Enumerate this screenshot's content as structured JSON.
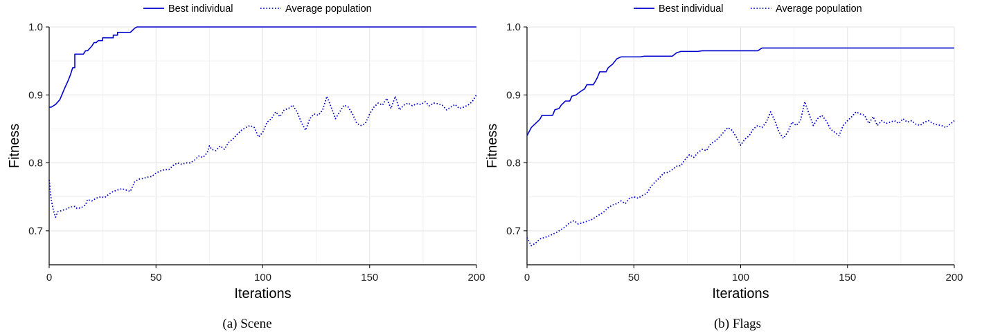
{
  "chart_data": [
    {
      "type": "line",
      "caption": "(a) Scene",
      "xlabel": "Iterations",
      "ylabel": "Fitness",
      "xlim": [
        0,
        200
      ],
      "ylim": [
        0.65,
        1.0
      ],
      "xticks": [
        0,
        50,
        100,
        150,
        200
      ],
      "yticks": [
        0.7,
        0.8,
        0.9,
        1.0
      ],
      "xtick_labels": [
        "0",
        "50",
        "100",
        "150",
        "200"
      ],
      "ytick_labels": [
        "0.7",
        "0.8",
        "0.9",
        "1.0"
      ],
      "grid": true,
      "legend_position": "top",
      "series": [
        {
          "name": "Best individual",
          "color": "#0000cc",
          "style": "solid",
          "points": [
            [
              0,
              0.882
            ],
            [
              1,
              0.882
            ],
            [
              3,
              0.886
            ],
            [
              5,
              0.893
            ],
            [
              7,
              0.908
            ],
            [
              9,
              0.922
            ],
            [
              10,
              0.93
            ],
            [
              11,
              0.94
            ],
            [
              12,
              0.94
            ],
            [
              12,
              0.96
            ],
            [
              16,
              0.96
            ],
            [
              17,
              0.965
            ],
            [
              18,
              0.965
            ],
            [
              20,
              0.972
            ],
            [
              21,
              0.977
            ],
            [
              22,
              0.977
            ],
            [
              23,
              0.98
            ],
            [
              25,
              0.98
            ],
            [
              25,
              0.984
            ],
            [
              30,
              0.984
            ],
            [
              30,
              0.988
            ],
            [
              32,
              0.988
            ],
            [
              32,
              0.992
            ],
            [
              38,
              0.992
            ],
            [
              40,
              0.998
            ],
            [
              41,
              1.0
            ],
            [
              200,
              1.0
            ]
          ]
        },
        {
          "name": "Average population",
          "color": "#0000cc",
          "style": "dotted",
          "points": [
            [
              0,
              0.775
            ],
            [
              1,
              0.745
            ],
            [
              2,
              0.73
            ],
            [
              3,
              0.72
            ],
            [
              4,
              0.728
            ],
            [
              6,
              0.73
            ],
            [
              8,
              0.732
            ],
            [
              10,
              0.735
            ],
            [
              12,
              0.736
            ],
            [
              13,
              0.733
            ],
            [
              15,
              0.734
            ],
            [
              17,
              0.738
            ],
            [
              18,
              0.746
            ],
            [
              20,
              0.744
            ],
            [
              22,
              0.748
            ],
            [
              24,
              0.75
            ],
            [
              26,
              0.749
            ],
            [
              28,
              0.754
            ],
            [
              30,
              0.758
            ],
            [
              32,
              0.76
            ],
            [
              34,
              0.762
            ],
            [
              36,
              0.76
            ],
            [
              38,
              0.758
            ],
            [
              40,
              0.772
            ],
            [
              42,
              0.776
            ],
            [
              44,
              0.777
            ],
            [
              46,
              0.779
            ],
            [
              48,
              0.78
            ],
            [
              50,
              0.785
            ],
            [
              52,
              0.788
            ],
            [
              54,
              0.79
            ],
            [
              56,
              0.79
            ],
            [
              58,
              0.796
            ],
            [
              60,
              0.8
            ],
            [
              62,
              0.798
            ],
            [
              64,
              0.8
            ],
            [
              66,
              0.8
            ],
            [
              68,
              0.804
            ],
            [
              70,
              0.81
            ],
            [
              72,
              0.808
            ],
            [
              74,
              0.815
            ],
            [
              75,
              0.825
            ],
            [
              76,
              0.82
            ],
            [
              78,
              0.818
            ],
            [
              80,
              0.825
            ],
            [
              82,
              0.82
            ],
            [
              84,
              0.83
            ],
            [
              86,
              0.835
            ],
            [
              88,
              0.842
            ],
            [
              90,
              0.848
            ],
            [
              92,
              0.852
            ],
            [
              94,
              0.855
            ],
            [
              96,
              0.852
            ],
            [
              98,
              0.838
            ],
            [
              100,
              0.845
            ],
            [
              102,
              0.86
            ],
            [
              104,
              0.865
            ],
            [
              106,
              0.875
            ],
            [
              108,
              0.868
            ],
            [
              110,
              0.878
            ],
            [
              112,
              0.88
            ],
            [
              114,
              0.885
            ],
            [
              116,
              0.875
            ],
            [
              118,
              0.86
            ],
            [
              120,
              0.848
            ],
            [
              122,
              0.865
            ],
            [
              124,
              0.872
            ],
            [
              126,
              0.87
            ],
            [
              128,
              0.878
            ],
            [
              130,
              0.898
            ],
            [
              132,
              0.882
            ],
            [
              134,
              0.865
            ],
            [
              136,
              0.875
            ],
            [
              138,
              0.885
            ],
            [
              140,
              0.882
            ],
            [
              142,
              0.872
            ],
            [
              144,
              0.858
            ],
            [
              146,
              0.855
            ],
            [
              148,
              0.858
            ],
            [
              150,
              0.872
            ],
            [
              152,
              0.882
            ],
            [
              154,
              0.888
            ],
            [
              156,
              0.885
            ],
            [
              158,
              0.895
            ],
            [
              160,
              0.88
            ],
            [
              162,
              0.898
            ],
            [
              164,
              0.878
            ],
            [
              166,
              0.885
            ],
            [
              168,
              0.888
            ],
            [
              170,
              0.884
            ],
            [
              172,
              0.887
            ],
            [
              174,
              0.886
            ],
            [
              176,
              0.89
            ],
            [
              178,
              0.884
            ],
            [
              180,
              0.888
            ],
            [
              182,
              0.887
            ],
            [
              184,
              0.885
            ],
            [
              186,
              0.878
            ],
            [
              188,
              0.882
            ],
            [
              190,
              0.886
            ],
            [
              192,
              0.88
            ],
            [
              194,
              0.882
            ],
            [
              196,
              0.885
            ],
            [
              198,
              0.89
            ],
            [
              200,
              0.9
            ]
          ]
        }
      ]
    },
    {
      "type": "line",
      "caption": "(b) Flags",
      "xlabel": "Iterations",
      "ylabel": "Fitness",
      "xlim": [
        0,
        200
      ],
      "ylim": [
        0.65,
        1.0
      ],
      "xticks": [
        0,
        50,
        100,
        150,
        200
      ],
      "yticks": [
        0.7,
        0.8,
        0.9,
        1.0
      ],
      "xtick_labels": [
        "0",
        "50",
        "100",
        "150",
        "200"
      ],
      "ytick_labels": [
        "0.7",
        "0.8",
        "0.9",
        "1.0"
      ],
      "grid": true,
      "legend_position": "top",
      "series": [
        {
          "name": "Best individual",
          "color": "#0000cc",
          "style": "solid",
          "points": [
            [
              0,
              0.84
            ],
            [
              2,
              0.852
            ],
            [
              4,
              0.858
            ],
            [
              6,
              0.864
            ],
            [
              7,
              0.87
            ],
            [
              12,
              0.87
            ],
            [
              13,
              0.878
            ],
            [
              15,
              0.88
            ],
            [
              16,
              0.885
            ],
            [
              18,
              0.891
            ],
            [
              20,
              0.891
            ],
            [
              21,
              0.898
            ],
            [
              23,
              0.9
            ],
            [
              25,
              0.905
            ],
            [
              27,
              0.909
            ],
            [
              28,
              0.915
            ],
            [
              31,
              0.915
            ],
            [
              32,
              0.92
            ],
            [
              33,
              0.926
            ],
            [
              34,
              0.934
            ],
            [
              37,
              0.934
            ],
            [
              38,
              0.94
            ],
            [
              40,
              0.945
            ],
            [
              42,
              0.953
            ],
            [
              44,
              0.956
            ],
            [
              53,
              0.956
            ],
            [
              55,
              0.957
            ],
            [
              68,
              0.957
            ],
            [
              70,
              0.962
            ],
            [
              72,
              0.964
            ],
            [
              80,
              0.964
            ],
            [
              82,
              0.965
            ],
            [
              108,
              0.965
            ],
            [
              110,
              0.969
            ],
            [
              200,
              0.969
            ]
          ]
        },
        {
          "name": "Average population",
          "color": "#0000cc",
          "style": "dotted",
          "points": [
            [
              0,
              0.69
            ],
            [
              2,
              0.678
            ],
            [
              4,
              0.682
            ],
            [
              6,
              0.688
            ],
            [
              8,
              0.69
            ],
            [
              10,
              0.692
            ],
            [
              12,
              0.695
            ],
            [
              14,
              0.698
            ],
            [
              16,
              0.702
            ],
            [
              18,
              0.706
            ],
            [
              20,
              0.712
            ],
            [
              22,
              0.715
            ],
            [
              24,
              0.71
            ],
            [
              26,
              0.712
            ],
            [
              28,
              0.714
            ],
            [
              30,
              0.716
            ],
            [
              32,
              0.72
            ],
            [
              34,
              0.724
            ],
            [
              36,
              0.728
            ],
            [
              38,
              0.734
            ],
            [
              40,
              0.738
            ],
            [
              42,
              0.74
            ],
            [
              44,
              0.744
            ],
            [
              46,
              0.74
            ],
            [
              48,
              0.748
            ],
            [
              50,
              0.75
            ],
            [
              52,
              0.748
            ],
            [
              54,
              0.752
            ],
            [
              56,
              0.755
            ],
            [
              58,
              0.765
            ],
            [
              60,
              0.772
            ],
            [
              62,
              0.778
            ],
            [
              64,
              0.785
            ],
            [
              66,
              0.786
            ],
            [
              68,
              0.79
            ],
            [
              70,
              0.795
            ],
            [
              72,
              0.796
            ],
            [
              74,
              0.805
            ],
            [
              76,
              0.812
            ],
            [
              78,
              0.808
            ],
            [
              80,
              0.815
            ],
            [
              82,
              0.82
            ],
            [
              84,
              0.818
            ],
            [
              86,
              0.828
            ],
            [
              88,
              0.832
            ],
            [
              90,
              0.838
            ],
            [
              92,
              0.845
            ],
            [
              94,
              0.852
            ],
            [
              96,
              0.848
            ],
            [
              98,
              0.838
            ],
            [
              100,
              0.826
            ],
            [
              102,
              0.835
            ],
            [
              104,
              0.84
            ],
            [
              106,
              0.85
            ],
            [
              108,
              0.855
            ],
            [
              110,
              0.852
            ],
            [
              112,
              0.86
            ],
            [
              114,
              0.875
            ],
            [
              116,
              0.862
            ],
            [
              118,
              0.845
            ],
            [
              120,
              0.836
            ],
            [
              122,
              0.845
            ],
            [
              124,
              0.86
            ],
            [
              126,
              0.855
            ],
            [
              128,
              0.862
            ],
            [
              130,
              0.89
            ],
            [
              132,
              0.872
            ],
            [
              134,
              0.855
            ],
            [
              136,
              0.865
            ],
            [
              138,
              0.87
            ],
            [
              140,
              0.862
            ],
            [
              142,
              0.85
            ],
            [
              144,
              0.845
            ],
            [
              146,
              0.84
            ],
            [
              148,
              0.855
            ],
            [
              150,
              0.862
            ],
            [
              152,
              0.868
            ],
            [
              154,
              0.875
            ],
            [
              156,
              0.872
            ],
            [
              158,
              0.87
            ],
            [
              160,
              0.858
            ],
            [
              162,
              0.868
            ],
            [
              164,
              0.855
            ],
            [
              166,
              0.862
            ],
            [
              168,
              0.858
            ],
            [
              170,
              0.86
            ],
            [
              172,
              0.862
            ],
            [
              174,
              0.858
            ],
            [
              176,
              0.865
            ],
            [
              178,
              0.86
            ],
            [
              180,
              0.862
            ],
            [
              182,
              0.857
            ],
            [
              184,
              0.855
            ],
            [
              186,
              0.86
            ],
            [
              188,
              0.862
            ],
            [
              190,
              0.858
            ],
            [
              192,
              0.856
            ],
            [
              194,
              0.855
            ],
            [
              196,
              0.852
            ],
            [
              198,
              0.857
            ],
            [
              200,
              0.862
            ]
          ]
        }
      ]
    }
  ]
}
